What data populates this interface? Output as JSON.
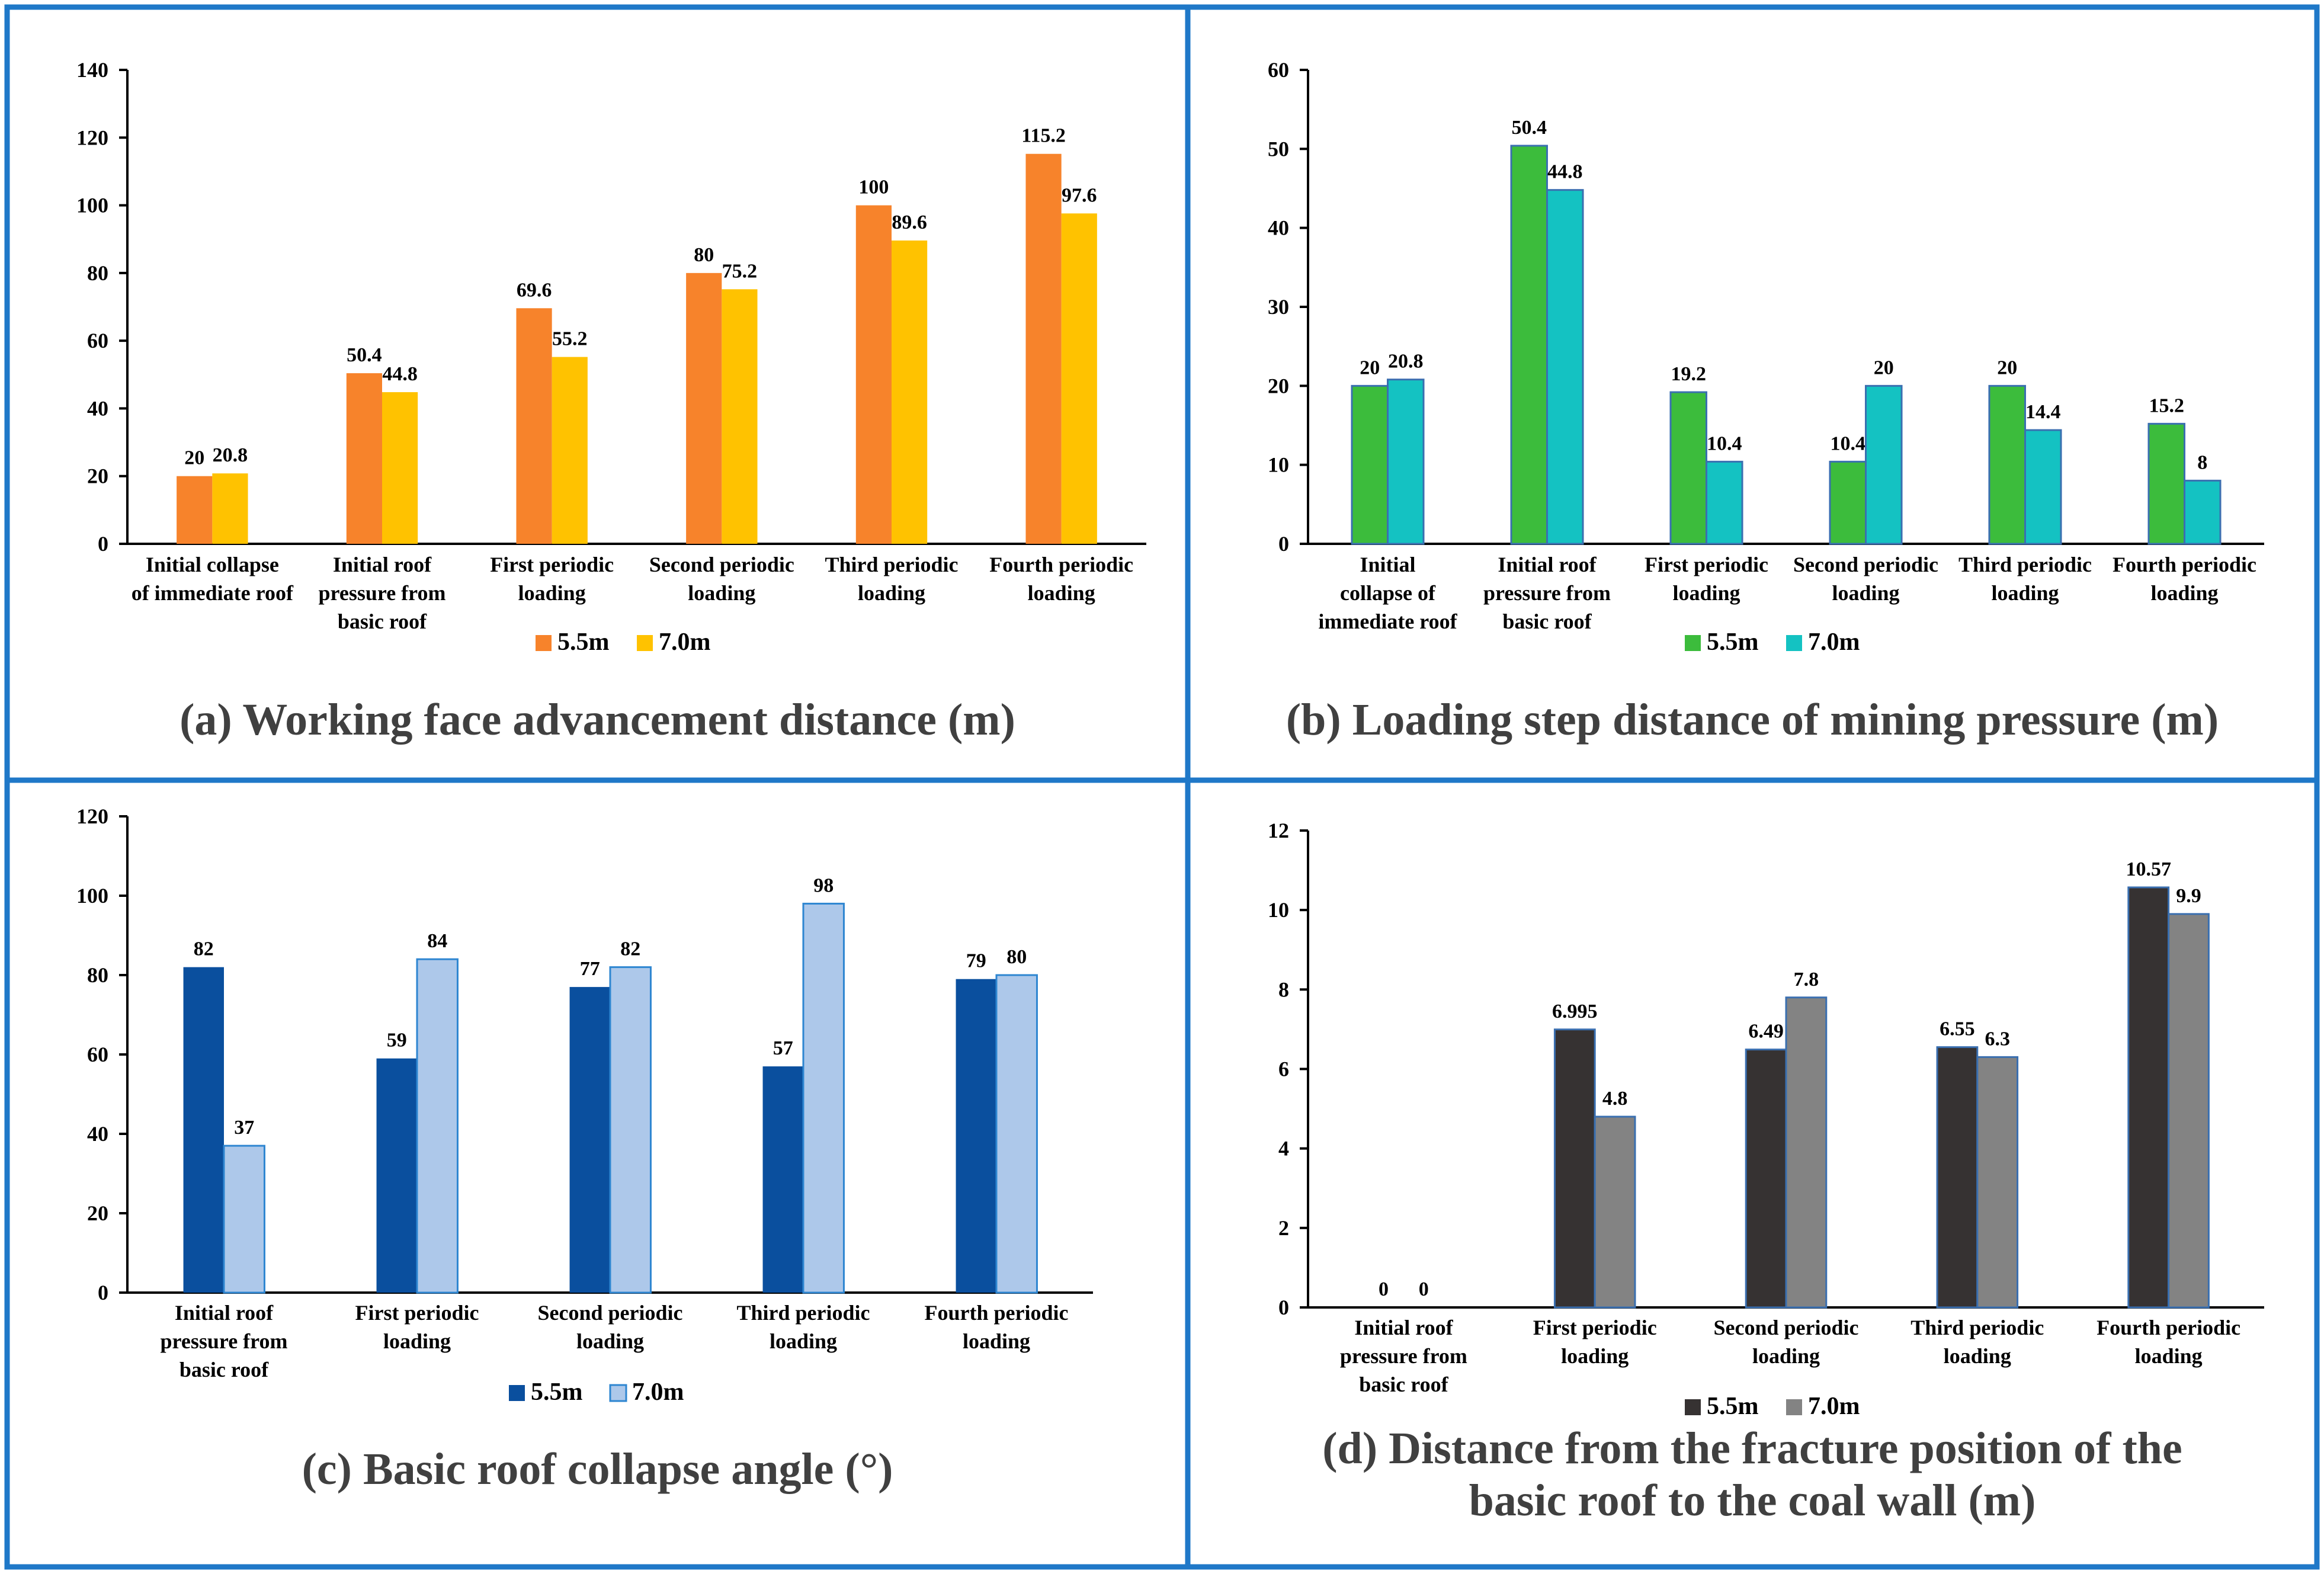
{
  "chart_data": [
    {
      "id": "a",
      "type": "bar",
      "title": "(a) Working face advancement distance (m)",
      "categories": [
        "Initial collapse of immediate roof",
        "Initial roof pressure from basic roof",
        "First periodic loading",
        "Second periodic loading",
        "Third periodic loading",
        "Fourth periodic loading"
      ],
      "series": [
        {
          "name": "5.5m",
          "values": [
            20,
            50.4,
            69.6,
            80,
            100,
            115.2
          ],
          "color": "#f7832b"
        },
        {
          "name": "7.0m",
          "values": [
            20.8,
            44.8,
            55.2,
            75.2,
            89.6,
            97.6
          ],
          "color": "#ffc200"
        }
      ],
      "ylim": [
        0,
        140
      ],
      "yticks": [
        0,
        20,
        40,
        60,
        80,
        100,
        120,
        140
      ],
      "legend": "bottom"
    },
    {
      "id": "b",
      "type": "bar",
      "title": "(b) Loading step distance of mining pressure (m)",
      "categories": [
        "Initial collapse of immediate roof",
        "Initial roof pressure from basic roof",
        "First periodic loading",
        "Second periodic loading",
        "Third periodic loading",
        "Fourth periodic loading"
      ],
      "series": [
        {
          "name": "5.5m",
          "values": [
            20,
            50.4,
            19.2,
            10.4,
            20,
            15.2
          ],
          "color": "#3cbc3c"
        },
        {
          "name": "7.0m",
          "values": [
            20.8,
            44.8,
            10.4,
            20,
            14.4,
            8
          ],
          "color": "#14c2c2"
        }
      ],
      "ylim": [
        0,
        60
      ],
      "yticks": [
        0,
        10,
        20,
        30,
        40,
        50,
        60
      ],
      "legend": "bottom"
    },
    {
      "id": "c",
      "type": "bar",
      "title": "(c) Basic roof collapse angle (°)",
      "categories": [
        "Initial roof pressure from basic roof",
        "First periodic loading",
        "Second periodic loading",
        "Third periodic loading",
        "Fourth periodic loading"
      ],
      "series": [
        {
          "name": "5.5m",
          "values": [
            82,
            59,
            77,
            57,
            79
          ],
          "color": "#0a4f9e"
        },
        {
          "name": "7.0m",
          "values": [
            37,
            84,
            82,
            98,
            80
          ],
          "color": "#adc8ea"
        }
      ],
      "ylim": [
        0,
        120
      ],
      "yticks": [
        0,
        20,
        40,
        60,
        80,
        100,
        120
      ],
      "legend": "bottom"
    },
    {
      "id": "d",
      "type": "bar",
      "title": "(d) Distance from the fracture position of the basic roof to the coal wall (m)",
      "categories": [
        "Initial roof pressure from basic roof",
        "First periodic loading",
        "Second periodic loading",
        "Third periodic loading",
        "Fourth periodic loading"
      ],
      "series": [
        {
          "name": "5.5m",
          "values": [
            0,
            6.995,
            6.49,
            6.55,
            10.57
          ],
          "color": "#363232"
        },
        {
          "name": "7.0m",
          "values": [
            0,
            4.8,
            7.8,
            6.3,
            9.9
          ],
          "color": "#838383"
        }
      ],
      "ylim": [
        0,
        12
      ],
      "yticks": [
        0,
        2,
        4,
        6,
        8,
        10,
        12
      ],
      "legend": "bottom"
    }
  ]
}
